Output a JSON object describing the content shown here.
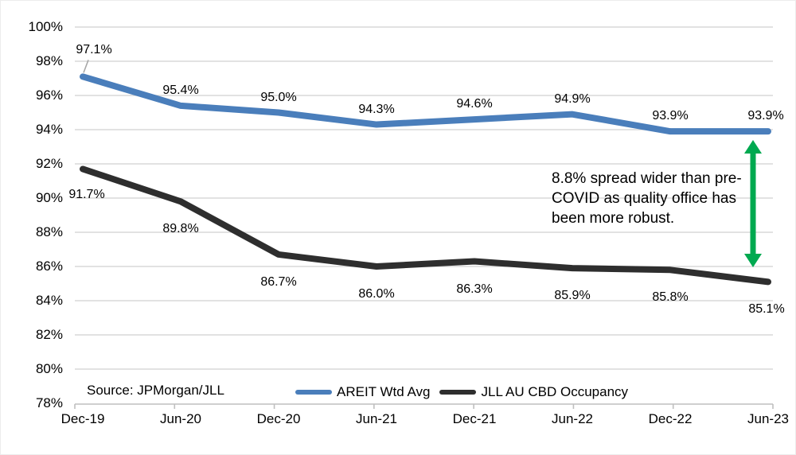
{
  "chart_data": {
    "type": "line",
    "categories": [
      "Dec-19",
      "Jun-20",
      "Dec-20",
      "Jun-21",
      "Dec-21",
      "Jun-22",
      "Dec-22",
      "Jun-23"
    ],
    "series": [
      {
        "name": "AREIT Wtd Avg",
        "color": "#4A7EBB",
        "values": [
          97.1,
          95.4,
          95.0,
          94.3,
          94.6,
          94.9,
          93.9,
          93.9
        ]
      },
      {
        "name": "JLL AU CBD Occupancy",
        "color": "#2E2E2E",
        "values": [
          91.7,
          89.8,
          86.7,
          86.0,
          86.3,
          85.9,
          85.8,
          85.1
        ]
      }
    ],
    "y_axis": {
      "min": 78,
      "max": 100,
      "step": 2,
      "suffix": "%"
    },
    "grid": true,
    "data_labels": true,
    "legend_position": "bottom-center"
  },
  "annotation": {
    "text": "8.8% spread wider than pre-COVID as quality office has been more robust.",
    "lines": [
      "8.8% spread wider than pre-",
      "COVID as quality office has",
      "been more robust."
    ],
    "arrow_color": "#00A950"
  },
  "source_label": "Source: JPMorgan/JLL",
  "colors": {
    "gridline": "#D9D9D9",
    "axis": "#BFBFBF",
    "leader_line": "#A6A6A6",
    "background": "#FFFFFF",
    "text": "#000000"
  }
}
